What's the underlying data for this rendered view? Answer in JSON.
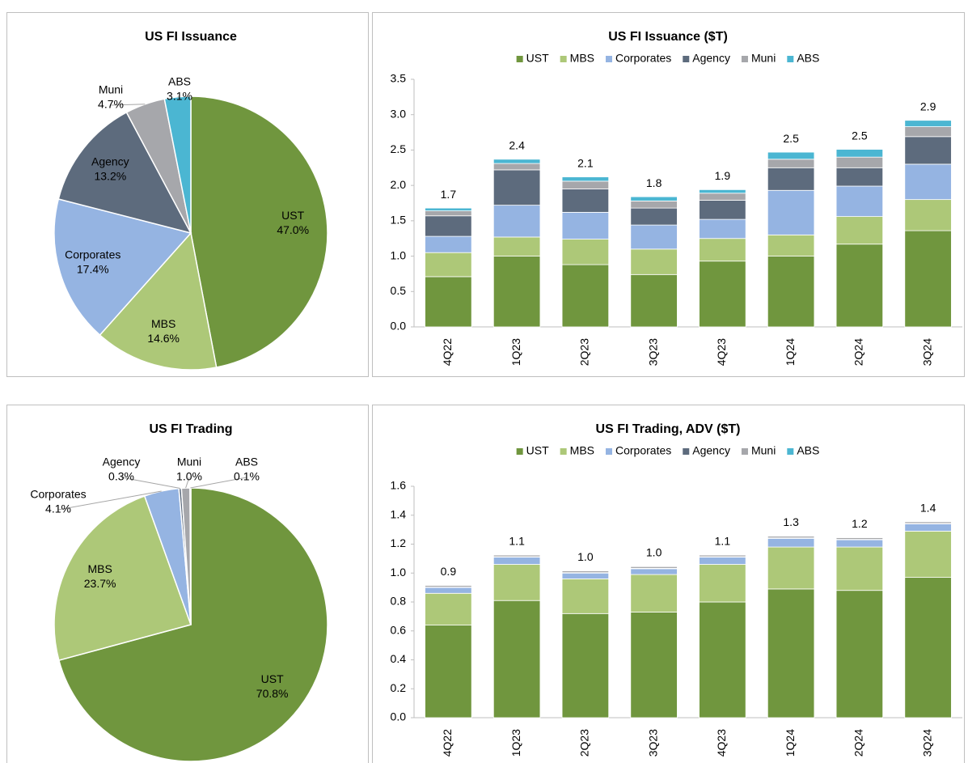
{
  "chart_data": [
    {
      "type": "pie",
      "title": "US FI Issuance",
      "categories": [
        "UST",
        "MBS",
        "Corporates",
        "Agency",
        "Muni",
        "ABS"
      ],
      "values": [
        47.0,
        14.6,
        17.4,
        13.2,
        4.7,
        3.1
      ],
      "value_labels": [
        "47.0%",
        "14.6%",
        "17.4%",
        "13.2%",
        "4.7%",
        "3.1%"
      ],
      "colors": [
        "#70963e",
        "#adc878",
        "#95b4e2",
        "#5d6b7d",
        "#a6a7ab",
        "#4bb6d2"
      ]
    },
    {
      "type": "bar",
      "stacked": true,
      "title": "US FI Issuance ($T)",
      "legend": "top",
      "categories": [
        "4Q22",
        "1Q23",
        "2Q23",
        "3Q23",
        "4Q23",
        "1Q24",
        "2Q24",
        "3Q24"
      ],
      "series": [
        {
          "name": "UST",
          "color": "#70963e",
          "values": [
            0.71,
            1.0,
            0.88,
            0.74,
            0.93,
            1.0,
            1.17,
            1.36
          ]
        },
        {
          "name": "MBS",
          "color": "#adc878",
          "values": [
            0.34,
            0.27,
            0.36,
            0.36,
            0.32,
            0.3,
            0.39,
            0.44
          ]
        },
        {
          "name": "Corporates",
          "color": "#95b4e2",
          "values": [
            0.23,
            0.45,
            0.38,
            0.34,
            0.27,
            0.63,
            0.43,
            0.5
          ]
        },
        {
          "name": "Agency",
          "color": "#5d6b7d",
          "values": [
            0.29,
            0.5,
            0.33,
            0.24,
            0.27,
            0.32,
            0.26,
            0.39
          ]
        },
        {
          "name": "Muni",
          "color": "#a6a7ab",
          "values": [
            0.07,
            0.09,
            0.11,
            0.1,
            0.1,
            0.12,
            0.15,
            0.14
          ]
        },
        {
          "name": "ABS",
          "color": "#4bb6d2",
          "values": [
            0.04,
            0.06,
            0.06,
            0.06,
            0.05,
            0.1,
            0.11,
            0.09
          ]
        }
      ],
      "totals": [
        1.68,
        2.37,
        2.12,
        1.84,
        1.94,
        2.47,
        2.51,
        2.92
      ],
      "total_labels": [
        "1.7",
        "2.4",
        "2.1",
        "1.8",
        "1.9",
        "2.5",
        "2.5",
        "2.9"
      ],
      "ylim": [
        0,
        3.5
      ],
      "yticks": [
        {
          "value": 0,
          "label": "0.0"
        },
        0.5,
        {
          "value": 1,
          "label": "1.0"
        },
        1.5,
        {
          "value": 2,
          "label": "2.0"
        },
        2.5,
        {
          "value": 3,
          "label": "3.0"
        },
        3.5
      ]
    },
    {
      "type": "pie",
      "title": "US FI Trading",
      "categories": [
        "UST",
        "MBS",
        "Corporates",
        "Agency",
        "Muni",
        "ABS"
      ],
      "values": [
        70.8,
        23.7,
        4.1,
        0.3,
        1.0,
        0.1
      ],
      "value_labels": [
        "70.8%",
        "23.7%",
        "4.1%",
        "0.3%",
        "1.0%",
        "0.1%"
      ],
      "colors": [
        "#70963e",
        "#adc878",
        "#95b4e2",
        "#5d6b7d",
        "#a6a7ab",
        "#4bb6d2"
      ]
    },
    {
      "type": "bar",
      "stacked": true,
      "title": "US FI Trading, ADV ($T)",
      "legend": "top",
      "categories": [
        "4Q22",
        "1Q23",
        "2Q23",
        "3Q23",
        "4Q23",
        "1Q24",
        "2Q24",
        "3Q24"
      ],
      "series": [
        {
          "name": "UST",
          "color": "#70963e",
          "values": [
            0.64,
            0.81,
            0.72,
            0.73,
            0.8,
            0.89,
            0.88,
            0.97
          ]
        },
        {
          "name": "MBS",
          "color": "#adc878",
          "values": [
            0.22,
            0.25,
            0.24,
            0.26,
            0.26,
            0.29,
            0.3,
            0.32
          ]
        },
        {
          "name": "Corporates",
          "color": "#95b4e2",
          "values": [
            0.04,
            0.05,
            0.04,
            0.04,
            0.05,
            0.06,
            0.05,
            0.05
          ]
        },
        {
          "name": "Agency",
          "color": "#5d6b7d",
          "values": [
            0.003,
            0.003,
            0.003,
            0.003,
            0.003,
            0.003,
            0.003,
            0.003
          ]
        },
        {
          "name": "Muni",
          "color": "#a6a7ab",
          "values": [
            0.012,
            0.012,
            0.012,
            0.012,
            0.012,
            0.012,
            0.012,
            0.012
          ]
        },
        {
          "name": "ABS",
          "color": "#4bb6d2",
          "values": [
            0.001,
            0.001,
            0.001,
            0.001,
            0.001,
            0.001,
            0.001,
            0.001
          ]
        }
      ],
      "totals": [
        0.916,
        1.126,
        1.016,
        1.046,
        1.126,
        1.256,
        1.246,
        1.356
      ],
      "total_labels": [
        "0.9",
        "1.1",
        "1.0",
        "1.0",
        "1.1",
        "1.3",
        "1.2",
        "1.4"
      ],
      "ylim": [
        0,
        1.6
      ],
      "yticks": [
        {
          "value": 0,
          "label": "0.0"
        },
        0.2,
        0.4,
        0.6,
        0.8,
        {
          "value": 1,
          "label": "1.0"
        },
        1.2,
        1.4,
        1.6
      ]
    }
  ]
}
